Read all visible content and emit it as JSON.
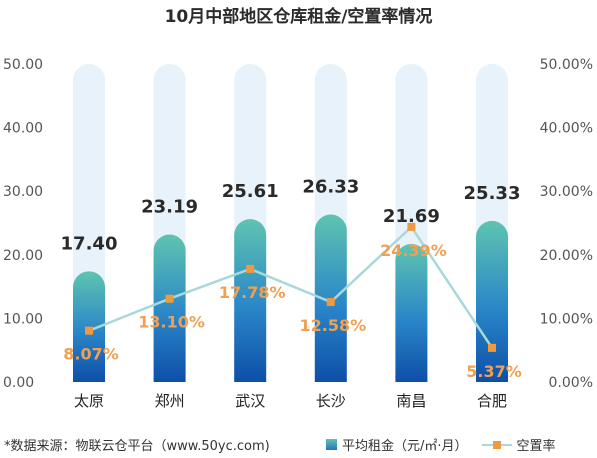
{
  "chart_data": {
    "type": "bar+line",
    "title": "10月中部地区仓库租金/空置率情况",
    "categories": [
      "太原",
      "郑州",
      "武汉",
      "长沙",
      "南昌",
      "合肥"
    ],
    "bar_series": {
      "name": "平均租金（元/㎡·月）",
      "values": [
        17.4,
        23.19,
        25.61,
        26.33,
        21.69,
        25.33
      ],
      "labels": [
        "17.40",
        "23.19",
        "25.61",
        "26.33",
        "21.69",
        "25.33"
      ]
    },
    "line_series": {
      "name": "空置率",
      "values": [
        8.07,
        13.1,
        17.78,
        12.58,
        24.39,
        5.37
      ],
      "labels": [
        "8.07%",
        "13.10%",
        "17.78%",
        "12.58%",
        "24.39%",
        "5.37%"
      ]
    },
    "y_left": {
      "min": 0,
      "max": 50,
      "ticks": [
        "0.00",
        "10.00",
        "20.00",
        "30.00",
        "40.00",
        "50.00"
      ]
    },
    "y_right": {
      "min": 0,
      "max": 50,
      "ticks": [
        "0.00%",
        "10.00%",
        "20.00%",
        "30.00%",
        "40.00%",
        "50.00%"
      ]
    },
    "grid": false,
    "legend_position": "bottom-right"
  },
  "footer": {
    "source": "*数据来源：物联云仓平台（www.50yc.com)"
  },
  "colors": {
    "bar_top": "#5ec4b0",
    "bar_bottom": "#0d4fa8",
    "bar_track": "#e8f2fa",
    "line": "#a9d8d8",
    "marker": "#f09a3e",
    "rate_label": "#f0a050"
  }
}
